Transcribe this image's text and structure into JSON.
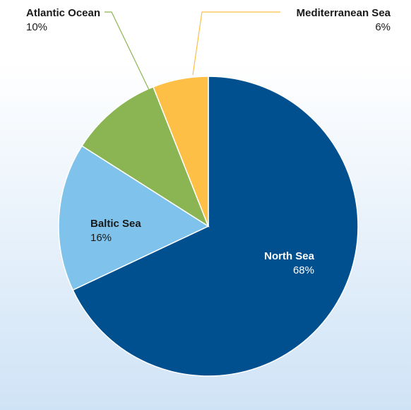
{
  "chart_data": {
    "type": "pie",
    "title": "",
    "start_angle_deg": 0,
    "direction": "clockwise",
    "legend": "none",
    "slices": [
      {
        "name": "North Sea",
        "value": 68,
        "label": "68%",
        "color": "#00508f",
        "label_color": "#ffffff"
      },
      {
        "name": "Baltic Sea",
        "value": 16,
        "label": "16%",
        "color": "#7fc3ec",
        "label_color": "#1a1a1a"
      },
      {
        "name": "Atlantic Ocean",
        "value": 10,
        "label": "10%",
        "color": "#8bb552",
        "label_color": "#1a1a1a"
      },
      {
        "name": "Mediterranean Sea",
        "value": 6,
        "label": "6%",
        "color": "#fdbf45",
        "label_color": "#1a1a1a"
      }
    ]
  },
  "colors": {
    "background_top": "#ffffff",
    "background_bottom": "#cfe3f6",
    "slice_border": "#ffffff"
  }
}
